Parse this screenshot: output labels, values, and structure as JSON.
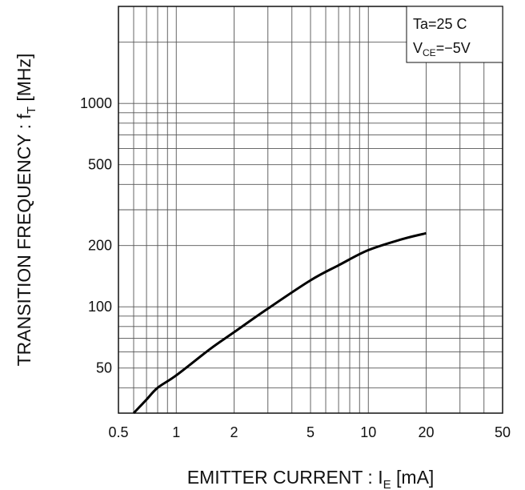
{
  "chart_data": {
    "type": "line",
    "x_scale": "log",
    "y_scale": "log",
    "xlim": [
      0.5,
      50
    ],
    "ylim": [
      30,
      3000
    ],
    "x_ticks": [
      0.5,
      1,
      2,
      5,
      10,
      20,
      50
    ],
    "x_tick_labels": [
      "0.5",
      "1",
      "2",
      "5",
      "10",
      "20",
      "50"
    ],
    "y_ticks": [
      50,
      100,
      200,
      500,
      1000
    ],
    "y_tick_labels": [
      "50",
      "100",
      "200",
      "500",
      "1000"
    ],
    "grid": true,
    "xlabel": {
      "main": "EMITTER CURRENT : I",
      "sub": "E",
      "unit": " [mA]"
    },
    "ylabel": {
      "main": "TRANSITION FREQUENCY : f",
      "sub": "T",
      "unit": " [MHz]"
    },
    "legend": {
      "position": "top-right",
      "line1": "Ta=25 C",
      "line2_main": "V",
      "line2_sub": "CE",
      "line2_rest": "=−5V"
    },
    "series": [
      {
        "x": [
          0.6,
          0.7,
          0.8,
          1.0,
          1.5,
          2.0,
          3.0,
          5.0,
          7.0,
          10.0,
          15.0,
          20.0
        ],
        "y": [
          30,
          35,
          40,
          46,
          62,
          75,
          98,
          135,
          160,
          190,
          215,
          230
        ]
      }
    ],
    "colors": {
      "curve": "#000000",
      "grid": "#555555",
      "axes": "#111111"
    }
  }
}
